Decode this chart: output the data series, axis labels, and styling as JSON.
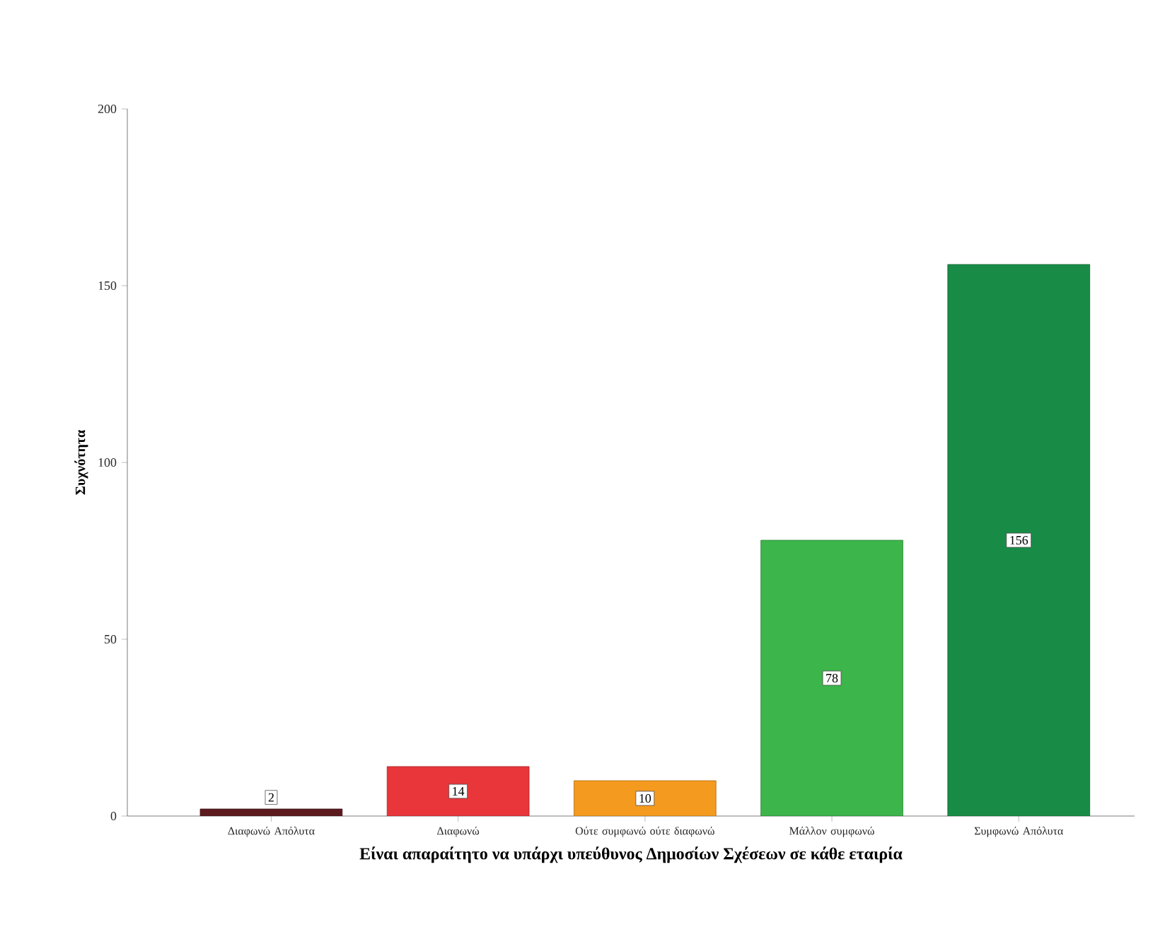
{
  "chart_data": {
    "type": "bar",
    "xlabel": "Είναι απαραίτητο να υπάρχι υπεύθυνος Δημοσίων Σχέσεων σε κάθε εταιρία",
    "ylabel": "Συχνότητα",
    "categories": [
      "Διαφωνώ Απόλυτα",
      "Διαφωνώ",
      "Ούτε συμφωνώ ούτε διαφωνώ",
      "Μάλλον συμφωνώ",
      "Συμφωνώ Απόλυτα"
    ],
    "values": [
      2,
      14,
      10,
      78,
      156
    ],
    "colors": [
      "#5c1a1e",
      "#e8363a",
      "#f49a1e",
      "#3cb54a",
      "#188c46"
    ],
    "ylim": [
      0,
      200
    ],
    "yticks": [
      0,
      50,
      100,
      150,
      200
    ],
    "data_labels": true,
    "grid": false
  }
}
